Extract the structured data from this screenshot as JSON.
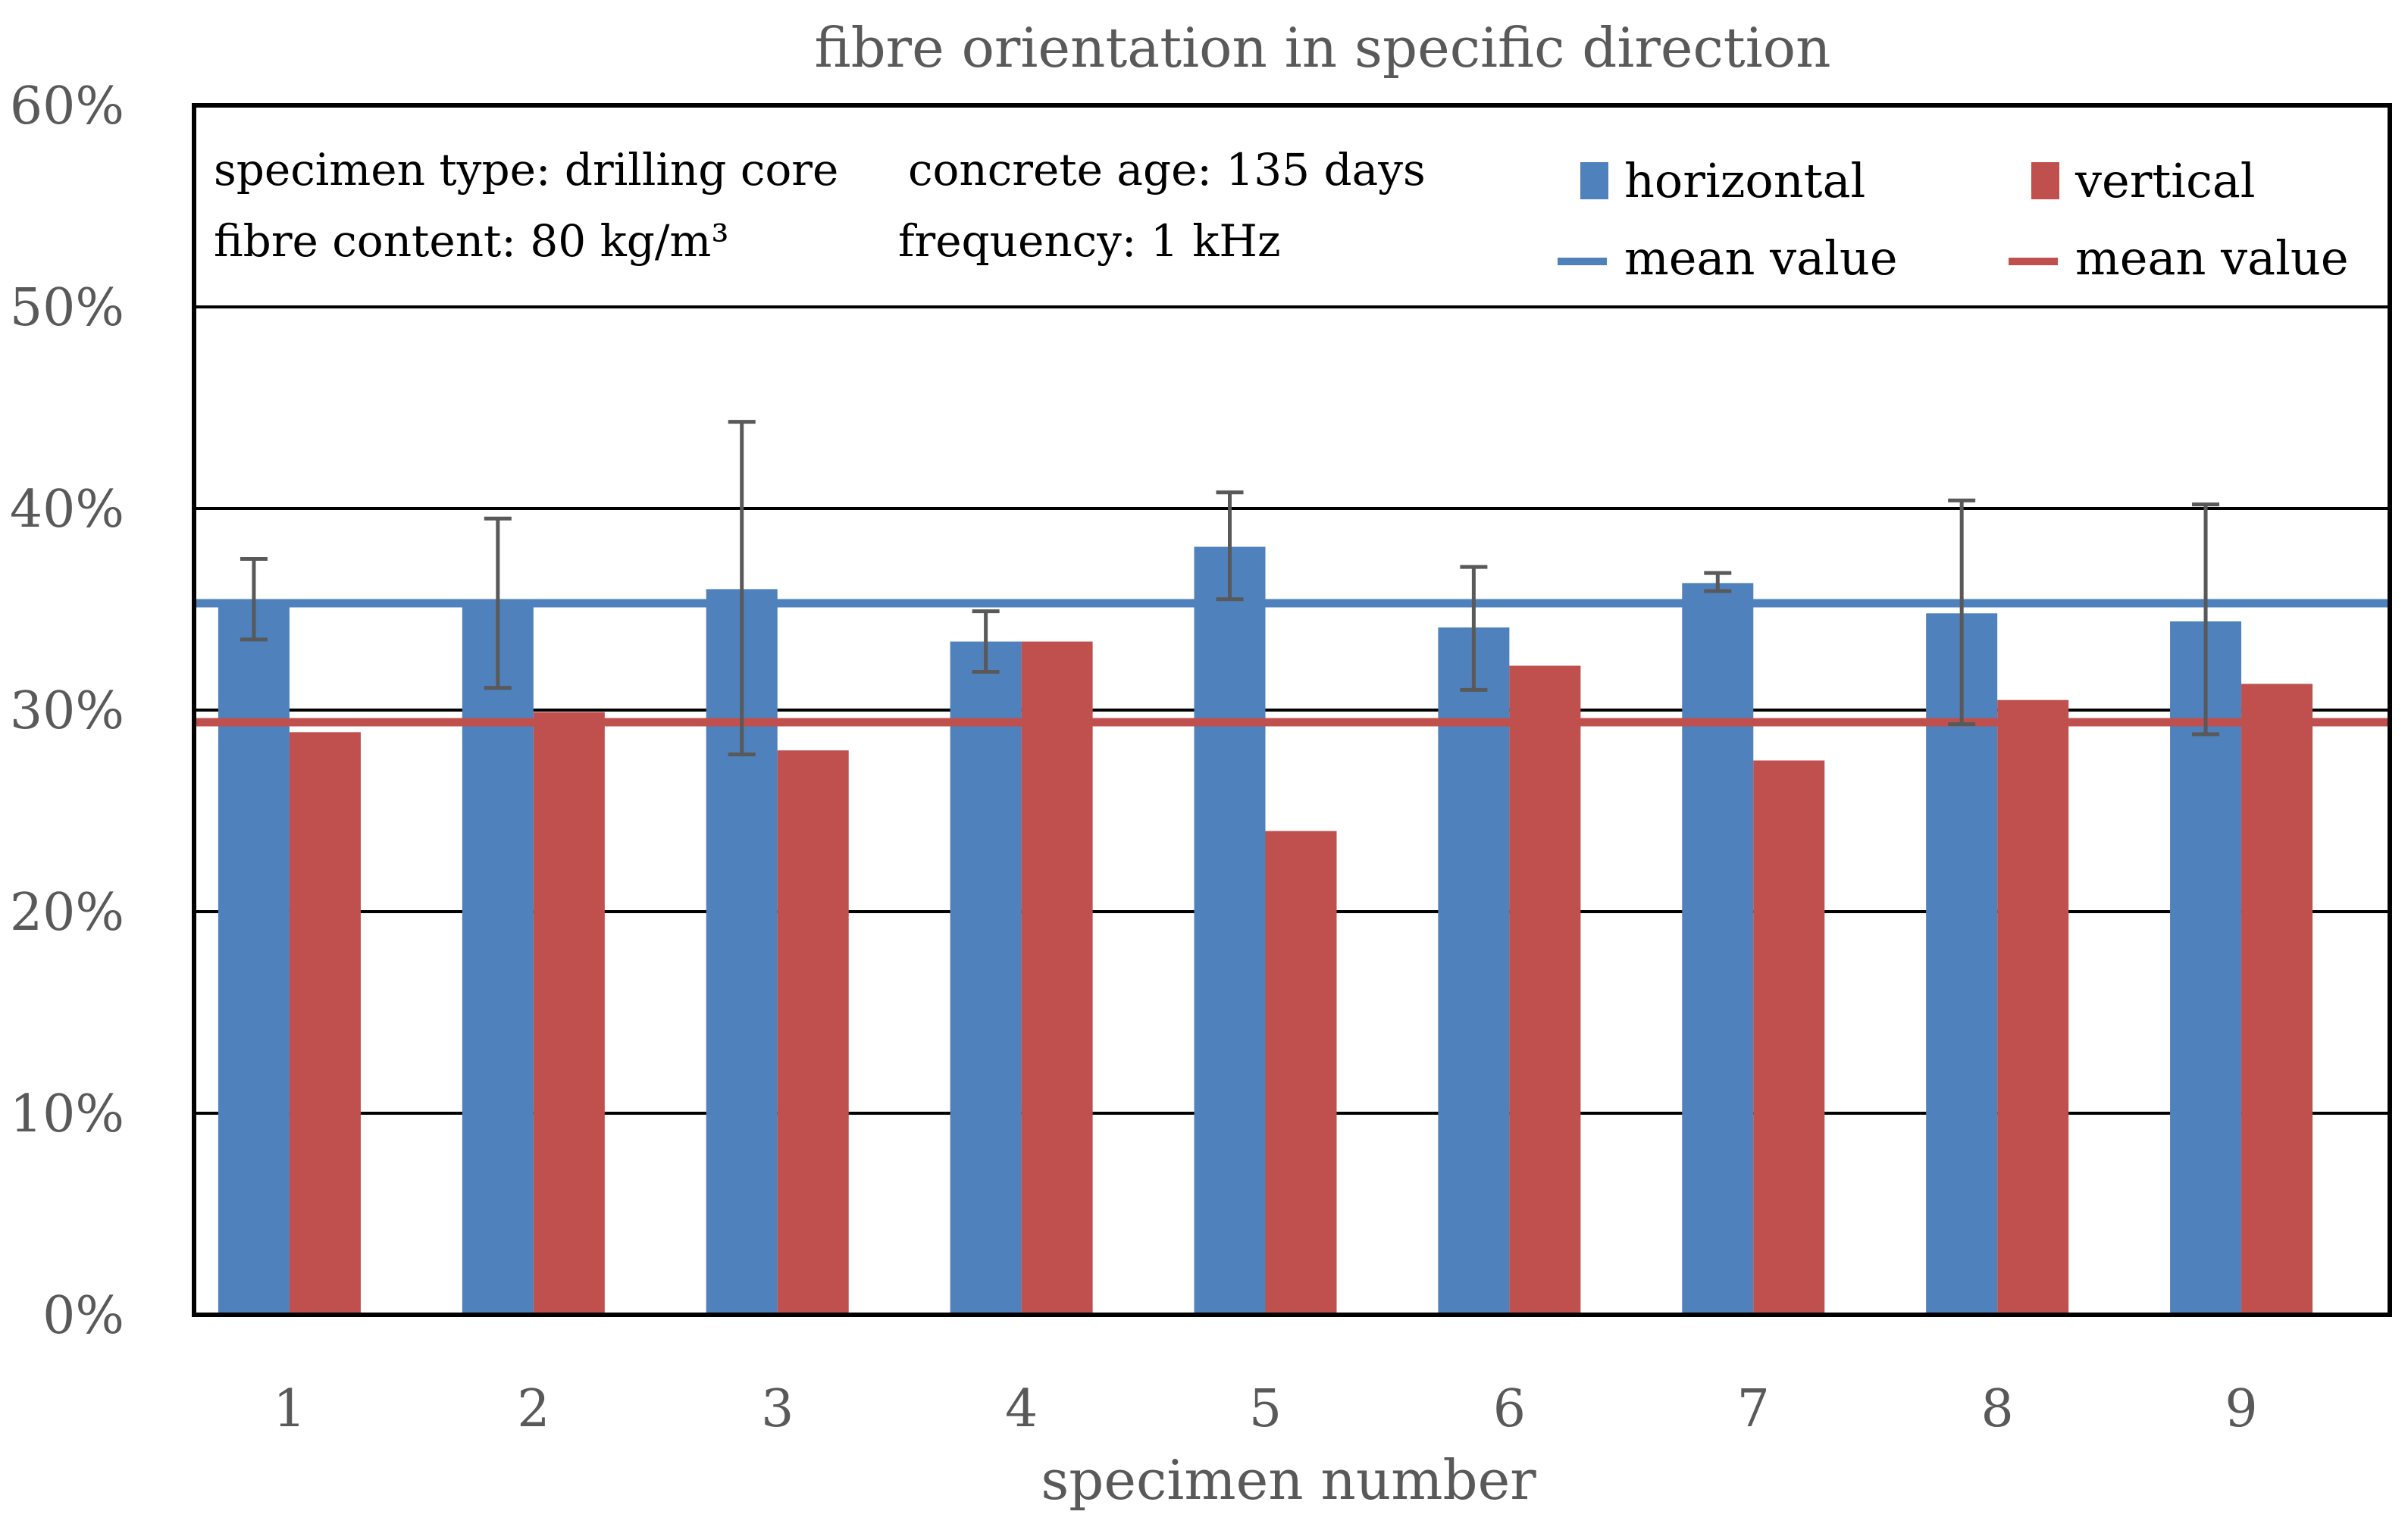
{
  "chart_data": {
    "type": "bar",
    "title": "fibre orientation in specific direction",
    "xlabel": "specimen number",
    "ylabel": "",
    "categories": [
      "1",
      "2",
      "3",
      "4",
      "5",
      "6",
      "7",
      "8",
      "9"
    ],
    "yticks": [
      "0%",
      "10%",
      "20%",
      "30%",
      "40%",
      "50%",
      "60%"
    ],
    "ylim": [
      0,
      60
    ],
    "grid": true,
    "series": [
      {
        "name": "horizontal",
        "color": "#4F81BD",
        "values": [
          35.5,
          35.3,
          36.0,
          33.4,
          38.1,
          34.1,
          36.3,
          34.8,
          34.4
        ],
        "error_low": [
          33.5,
          31.1,
          27.8,
          31.9,
          35.5,
          31.0,
          35.9,
          29.3,
          28.8
        ],
        "error_high": [
          37.5,
          39.5,
          44.3,
          34.9,
          40.8,
          37.1,
          36.8,
          40.4,
          40.2
        ]
      },
      {
        "name": "vertical",
        "color": "#C0504D",
        "values": [
          28.9,
          29.9,
          28.0,
          33.4,
          24.0,
          32.2,
          27.5,
          30.5,
          31.3
        ]
      }
    ],
    "mean_lines": [
      {
        "name": "mean value",
        "color": "#4F81BD",
        "value": 35.3
      },
      {
        "name": "mean value",
        "color": "#C0504D",
        "value": 29.4
      }
    ],
    "annotations": {
      "specimen_type": "specimen type: drilling core",
      "concrete_age": "concrete age: 135 days",
      "fibre_content": "fibre content: 80 kg/m³",
      "frequency": "frequency: 1 kHz"
    },
    "legend_position": "top-right"
  }
}
